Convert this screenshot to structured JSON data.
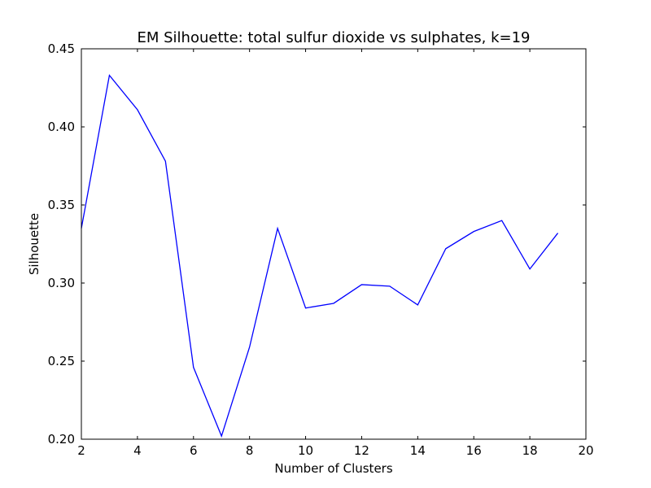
{
  "chart_data": {
    "type": "line",
    "title": "EM Silhouette: total sulfur dioxide vs sulphates, k=19",
    "xlabel": "Number of Clusters",
    "ylabel": "Silhouette",
    "xlim": [
      2,
      20
    ],
    "ylim": [
      0.2,
      0.45
    ],
    "xticks": [
      2,
      4,
      6,
      8,
      10,
      12,
      14,
      16,
      18,
      20
    ],
    "yticks": [
      0.2,
      0.25,
      0.3,
      0.35,
      0.4,
      0.45
    ],
    "xtick_labels": [
      "2",
      "4",
      "6",
      "8",
      "10",
      "12",
      "14",
      "16",
      "18",
      "20"
    ],
    "ytick_labels": [
      "0.20",
      "0.25",
      "0.30",
      "0.35",
      "0.40",
      "0.45"
    ],
    "grid": false,
    "legend": false,
    "series": [
      {
        "color": "#0000ff",
        "x": [
          2,
          3,
          4,
          5,
          6,
          7,
          8,
          9,
          10,
          11,
          12,
          13,
          14,
          15,
          16,
          17,
          18,
          19
        ],
        "y": [
          0.335,
          0.433,
          0.411,
          0.378,
          0.246,
          0.202,
          0.259,
          0.335,
          0.284,
          0.287,
          0.299,
          0.298,
          0.286,
          0.322,
          0.333,
          0.34,
          0.309,
          0.332
        ]
      }
    ]
  }
}
